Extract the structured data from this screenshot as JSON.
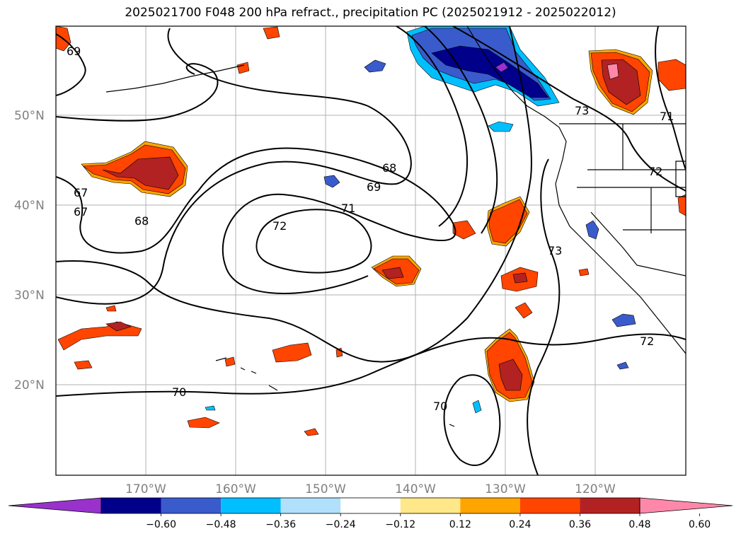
{
  "title": "2025021700 F048 200 hPa refract., precipitation PC (2025021912 - 2025022012)",
  "lat_labels": [
    "50°N",
    "40°N",
    "30°N",
    "20°N"
  ],
  "lon_labels": [
    "170°W",
    "160°W",
    "150°W",
    "140°W",
    "130°W",
    "120°W"
  ],
  "contour_labels": [
    "69",
    "67",
    "67",
    "68",
    "68",
    "69",
    "71",
    "72",
    "73",
    "73",
    "71",
    "72",
    "72",
    "70",
    "70"
  ],
  "colorbar": {
    "ticks": [
      "−0.60",
      "−0.48",
      "−0.36",
      "−0.24",
      "−0.12",
      "0.12",
      "0.24",
      "0.36",
      "0.48",
      "0.60"
    ],
    "colors": [
      "#9932cc",
      "#00008b",
      "#3a5bcc",
      "#00bfff",
      "#b0e0fa",
      "#ffffff",
      "#ffe88a",
      "#ffa500",
      "#ff4500",
      "#b22222",
      "#ff88aa"
    ]
  },
  "colors": {
    "neg_strong": "#00008b",
    "neg_mid": "#3a5bcc",
    "neg_light": "#00bfff",
    "pos_light": "#ffa500",
    "pos_mid": "#ff4500",
    "pos_strong": "#b22222",
    "pos_max": "#ff88aa"
  }
}
